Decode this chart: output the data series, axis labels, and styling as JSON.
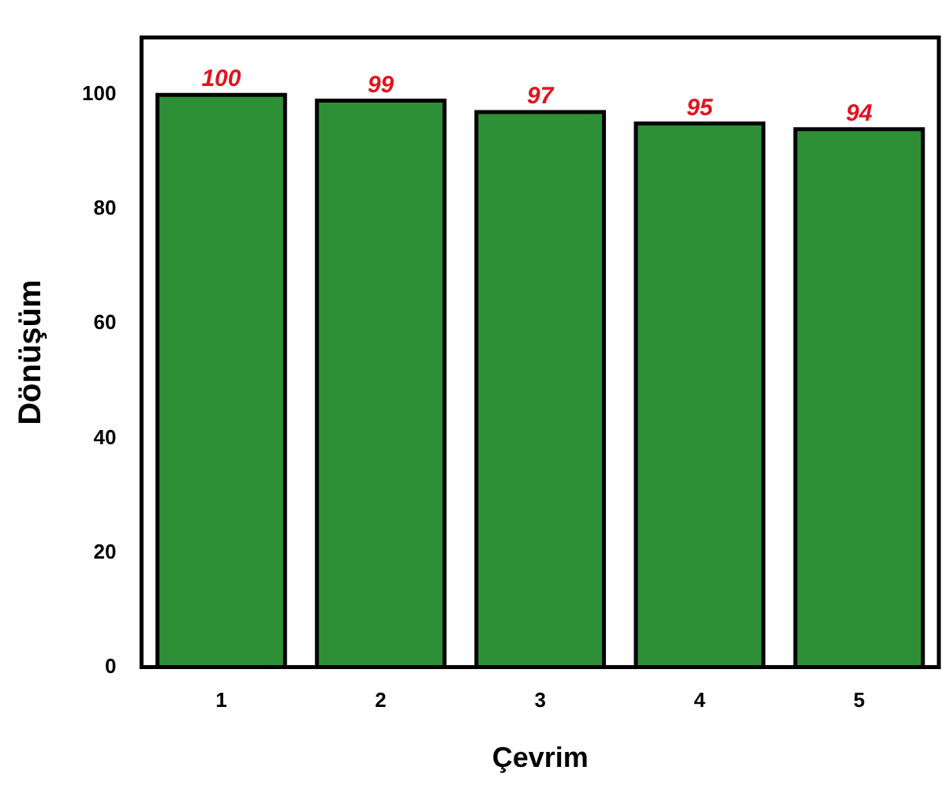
{
  "chart_data": {
    "type": "bar",
    "xlabel": "Çevrim",
    "ylabel": "Dönüşüm",
    "categories": [
      "1",
      "2",
      "3",
      "4",
      "5"
    ],
    "values": [
      100,
      99,
      97,
      95,
      94
    ],
    "color": "#2e9036",
    "ylim": [
      0,
      110
    ],
    "yticks": [
      0,
      20,
      40,
      60,
      80,
      100
    ],
    "grid": false,
    "data_labels": true
  }
}
